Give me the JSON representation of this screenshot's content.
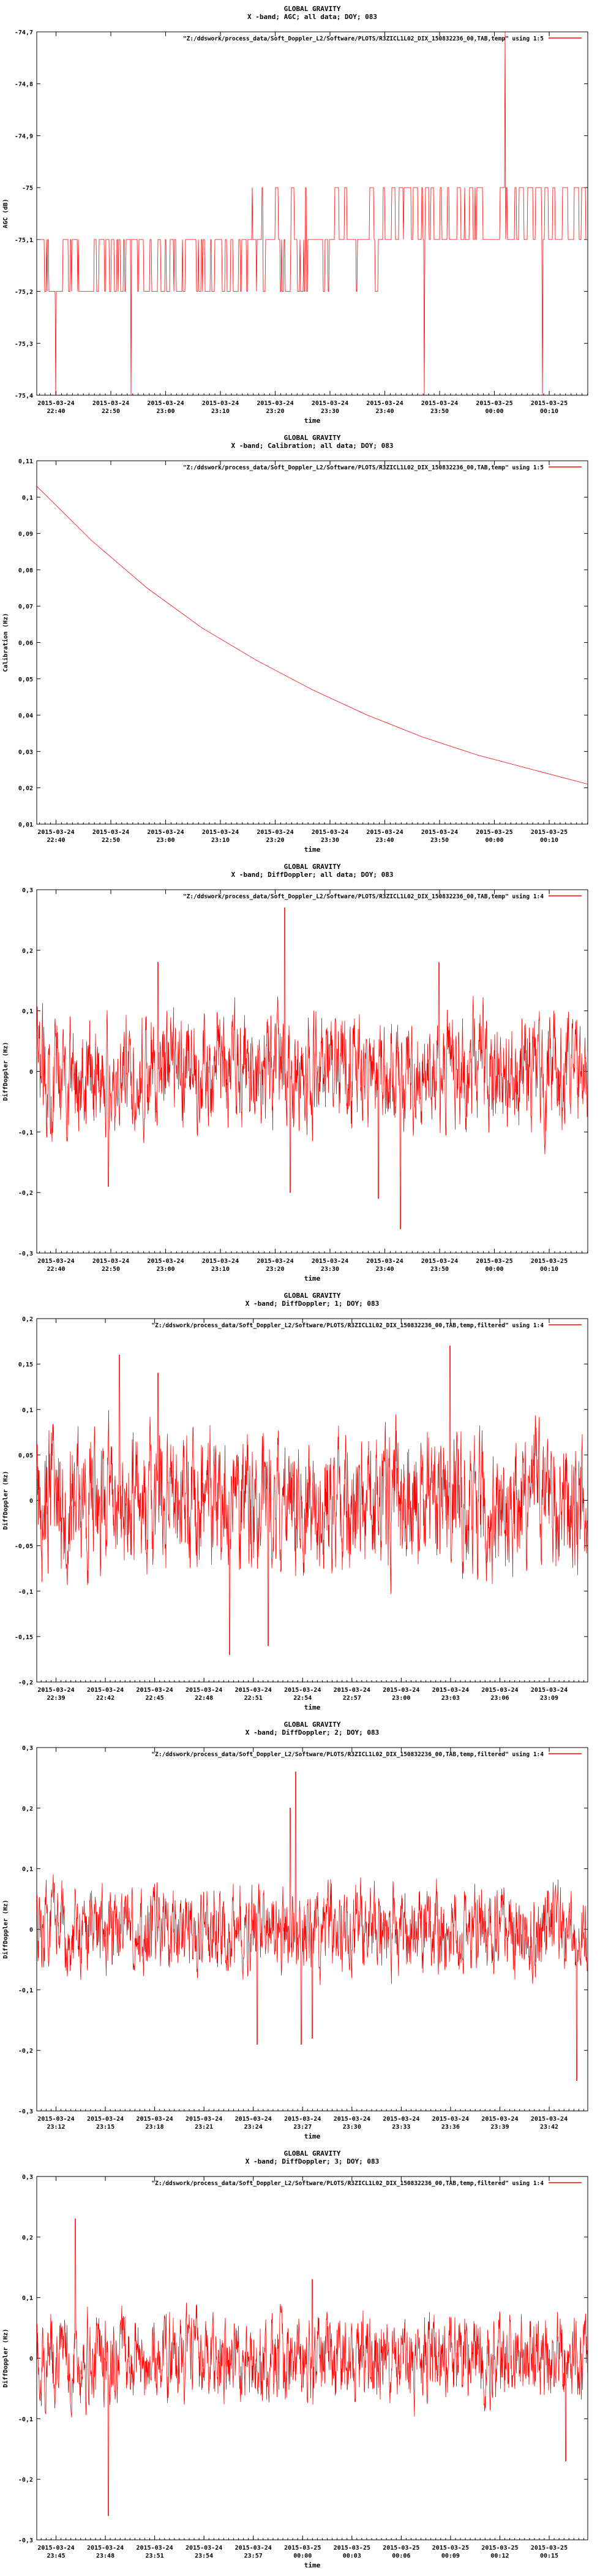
{
  "colors": {
    "series": "#ff0000",
    "axis": "#000000",
    "background": "#ffffff"
  },
  "chart_data": [
    {
      "type": "line",
      "title": "GLOBAL GRAVITY",
      "subtitle": "X -band; AGC; all data; DOY; 083",
      "legend": "\"Z:/ddswork/process_data/Soft_Doppler_L2/Software/PLOTS/R3ZICL1L02_DIX_150832236_00,TAB,temp\" using 1:5",
      "legend_position": "top-right",
      "xlabel": "time",
      "ylabel": "AGC (dB)",
      "ylim": [
        -75.4,
        -74.7
      ],
      "yticks": [
        "-74,7",
        "-74,8",
        "-74,9",
        "-75",
        "-75,1",
        "-75,2",
        "-75,3",
        "-75,4"
      ],
      "xticks": [
        [
          "2015-03-24",
          "22:40"
        ],
        [
          "2015-03-24",
          "22:50"
        ],
        [
          "2015-03-24",
          "23:00"
        ],
        [
          "2015-03-24",
          "23:10"
        ],
        [
          "2015-03-24",
          "23:20"
        ],
        [
          "2015-03-24",
          "23:30"
        ],
        [
          "2015-03-24",
          "23:40"
        ],
        [
          "2015-03-24",
          "23:50"
        ],
        [
          "2015-03-25",
          "00:00"
        ],
        [
          "2015-03-25",
          "00:10"
        ]
      ],
      "x_start": "2015-03-24 22:37",
      "x_end": "2015-03-25 00:16",
      "grid": false,
      "pattern": "agc",
      "series": [
        {
          "values": []
        }
      ]
    },
    {
      "type": "line",
      "title": "GLOBAL GRAVITY",
      "subtitle": "X -band; Calibration; all data; DOY; 083",
      "legend": "\"Z:/ddswork/process_data/Soft_Doppler_L2/Software/PLOTS/R3ZICL1L02_DIX_150832236_00,TAB,temp\" using 1:5",
      "legend_position": "top-right",
      "xlabel": "time",
      "ylabel": "Calibration (Hz)",
      "ylim": [
        0.01,
        0.11
      ],
      "yticks": [
        "0,11",
        "0,1",
        "0,09",
        "0,08",
        "0,07",
        "0,06",
        "0,05",
        "0,04",
        "0,03",
        "0,02",
        "0,01"
      ],
      "xticks": [
        [
          "2015-03-24",
          "22:40"
        ],
        [
          "2015-03-24",
          "22:50"
        ],
        [
          "2015-03-24",
          "23:00"
        ],
        [
          "2015-03-24",
          "23:10"
        ],
        [
          "2015-03-24",
          "23:20"
        ],
        [
          "2015-03-24",
          "23:30"
        ],
        [
          "2015-03-24",
          "23:40"
        ],
        [
          "2015-03-24",
          "23:50"
        ],
        [
          "2015-03-25",
          "00:00"
        ],
        [
          "2015-03-25",
          "00:10"
        ]
      ],
      "x_start": "2015-03-24 22:37",
      "x_end": "2015-03-25 00:16",
      "grid": false,
      "pattern": "smooth",
      "series": [
        {
          "values": [
            [
              0.0,
              0.103
            ],
            [
              0.1,
              0.088
            ],
            [
              0.2,
              0.075
            ],
            [
              0.3,
              0.064
            ],
            [
              0.4,
              0.055
            ],
            [
              0.5,
              0.047
            ],
            [
              0.6,
              0.04
            ],
            [
              0.7,
              0.034
            ],
            [
              0.8,
              0.029
            ],
            [
              0.9,
              0.025
            ],
            [
              1.0,
              0.021
            ]
          ]
        }
      ]
    },
    {
      "type": "line",
      "title": "GLOBAL GRAVITY",
      "subtitle": "X -band; DiffDoppler; all data; DOY; 083",
      "legend": "\"Z:/ddswork/process_data/Soft_Doppler_L2/Software/PLOTS/R3ZICL1L02_DIX_150832236_00,TAB,temp\" using 1:4",
      "legend_position": "top-right",
      "xlabel": "time",
      "ylabel": "DiffDoppler (Hz)",
      "ylim": [
        -0.3,
        0.3
      ],
      "yticks": [
        "0,3",
        "0,2",
        "0,1",
        "0",
        "-0,1",
        "-0,2",
        "-0,3"
      ],
      "xticks": [
        [
          "2015-03-24",
          "22:40"
        ],
        [
          "2015-03-24",
          "22:50"
        ],
        [
          "2015-03-24",
          "23:00"
        ],
        [
          "2015-03-24",
          "23:10"
        ],
        [
          "2015-03-24",
          "23:20"
        ],
        [
          "2015-03-24",
          "23:30"
        ],
        [
          "2015-03-24",
          "23:40"
        ],
        [
          "2015-03-24",
          "23:50"
        ],
        [
          "2015-03-25",
          "00:00"
        ],
        [
          "2015-03-25",
          "00:10"
        ]
      ],
      "x_start": "2015-03-24 22:37",
      "x_end": "2015-03-25 00:16",
      "grid": false,
      "pattern": "noise",
      "noise_amplitude": 0.06,
      "spikes": [
        [
          0.22,
          0.18
        ],
        [
          0.45,
          0.27
        ],
        [
          0.46,
          -0.2
        ],
        [
          0.66,
          -0.26
        ],
        [
          0.62,
          -0.21
        ],
        [
          0.13,
          -0.19
        ],
        [
          0.73,
          0.18
        ]
      ],
      "series": [
        {
          "values": []
        }
      ]
    },
    {
      "type": "line",
      "title": "GLOBAL GRAVITY",
      "subtitle": "X -band; DiffDoppler; 1; DOY; 083",
      "legend": "\"Z:/ddswork/process_data/Soft_Doppler_L2/Software/PLOTS/R3ZICL1L02_DIX_150832236_00,TAB,temp,filtered\" using 1:4",
      "legend_position": "top-right",
      "xlabel": "time",
      "ylabel": "DiffDoppler (Hz)",
      "ylim": [
        -0.2,
        0.2
      ],
      "yticks": [
        "0,2",
        "0,15",
        "0,1",
        "0,05",
        "0",
        "-0,05",
        "-0,1",
        "-0,15",
        "-0,2"
      ],
      "xticks": [
        [
          "2015-03-24",
          "22:39"
        ],
        [
          "2015-03-24",
          "22:42"
        ],
        [
          "2015-03-24",
          "22:45"
        ],
        [
          "2015-03-24",
          "22:48"
        ],
        [
          "2015-03-24",
          "22:51"
        ],
        [
          "2015-03-24",
          "22:54"
        ],
        [
          "2015-03-24",
          "22:57"
        ],
        [
          "2015-03-24",
          "23:00"
        ],
        [
          "2015-03-24",
          "23:03"
        ],
        [
          "2015-03-24",
          "23:06"
        ],
        [
          "2015-03-24",
          "23:09"
        ]
      ],
      "x_start": "2015-03-24 22:37",
      "x_end": "2015-03-24 23:09",
      "grid": false,
      "pattern": "noise",
      "noise_amplitude": 0.05,
      "spikes": [
        [
          0.75,
          0.17
        ],
        [
          0.15,
          0.16
        ],
        [
          0.35,
          -0.17
        ],
        [
          0.42,
          -0.16
        ],
        [
          0.22,
          0.14
        ]
      ],
      "series": [
        {
          "values": []
        }
      ]
    },
    {
      "type": "line",
      "title": "GLOBAL GRAVITY",
      "subtitle": "X -band; DiffDoppler; 2; DOY; 083",
      "legend": "\"Z:/ddswork/process_data/Soft_Doppler_L2/Software/PLOTS/R3ZICL1L02_DIX_150832236_00,TAB,temp,filtered\" using 1:4",
      "legend_position": "top-right",
      "xlabel": "time",
      "ylabel": "DiffDoppler (Hz)",
      "ylim": [
        -0.3,
        0.3
      ],
      "yticks": [
        "0,3",
        "0,2",
        "0,1",
        "0",
        "-0,1",
        "-0,2",
        "-0,3"
      ],
      "xticks": [
        [
          "2015-03-24",
          "23:12"
        ],
        [
          "2015-03-24",
          "23:15"
        ],
        [
          "2015-03-24",
          "23:18"
        ],
        [
          "2015-03-24",
          "23:21"
        ],
        [
          "2015-03-24",
          "23:24"
        ],
        [
          "2015-03-24",
          "23:27"
        ],
        [
          "2015-03-24",
          "23:30"
        ],
        [
          "2015-03-24",
          "23:33"
        ],
        [
          "2015-03-24",
          "23:36"
        ],
        [
          "2015-03-24",
          "23:39"
        ],
        [
          "2015-03-24",
          "23:42"
        ]
      ],
      "x_start": "2015-03-24 23:10",
      "x_end": "2015-03-24 23:43",
      "grid": false,
      "pattern": "noise",
      "noise_amplitude": 0.045,
      "spikes": [
        [
          0.47,
          0.26
        ],
        [
          0.46,
          0.2
        ],
        [
          0.48,
          -0.19
        ],
        [
          0.5,
          -0.18
        ],
        [
          0.98,
          -0.25
        ],
        [
          0.4,
          -0.19
        ]
      ],
      "series": [
        {
          "values": []
        }
      ]
    },
    {
      "type": "line",
      "title": "GLOBAL GRAVITY",
      "subtitle": "X -band; DiffDoppler; 3; DOY; 083",
      "legend": "\"Z:/ddswork/process_data/Soft_Doppler_L2/Software/PLOTS/R3ZICL1L02_DIX_150832236_00,TAB,temp,filtered\" using 1:4",
      "legend_position": "top-right",
      "xlabel": "time",
      "ylabel": "DiffDoppler (Hz)",
      "ylim": [
        -0.3,
        0.3
      ],
      "yticks": [
        "0,3",
        "0,2",
        "0,1",
        "0",
        "-0,1",
        "-0,2",
        "-0,3"
      ],
      "xticks": [
        [
          "2015-03-24",
          "23:45"
        ],
        [
          "2015-03-24",
          "23:48"
        ],
        [
          "2015-03-24",
          "23:51"
        ],
        [
          "2015-03-24",
          "23:54"
        ],
        [
          "2015-03-24",
          "23:57"
        ],
        [
          "2015-03-25",
          "00:00"
        ],
        [
          "2015-03-25",
          "00:03"
        ],
        [
          "2015-03-25",
          "00:06"
        ],
        [
          "2015-03-25",
          "00:09"
        ],
        [
          "2015-03-25",
          "00:12"
        ],
        [
          "2015-03-25",
          "00:15"
        ]
      ],
      "x_start": "2015-03-24 23:43",
      "x_end": "2015-03-25 00:16",
      "grid": false,
      "pattern": "noise",
      "noise_amplitude": 0.045,
      "spikes": [
        [
          0.07,
          0.23
        ],
        [
          0.13,
          -0.26
        ],
        [
          0.5,
          0.13
        ],
        [
          0.96,
          -0.17
        ]
      ],
      "series": [
        {
          "values": []
        }
      ]
    }
  ]
}
